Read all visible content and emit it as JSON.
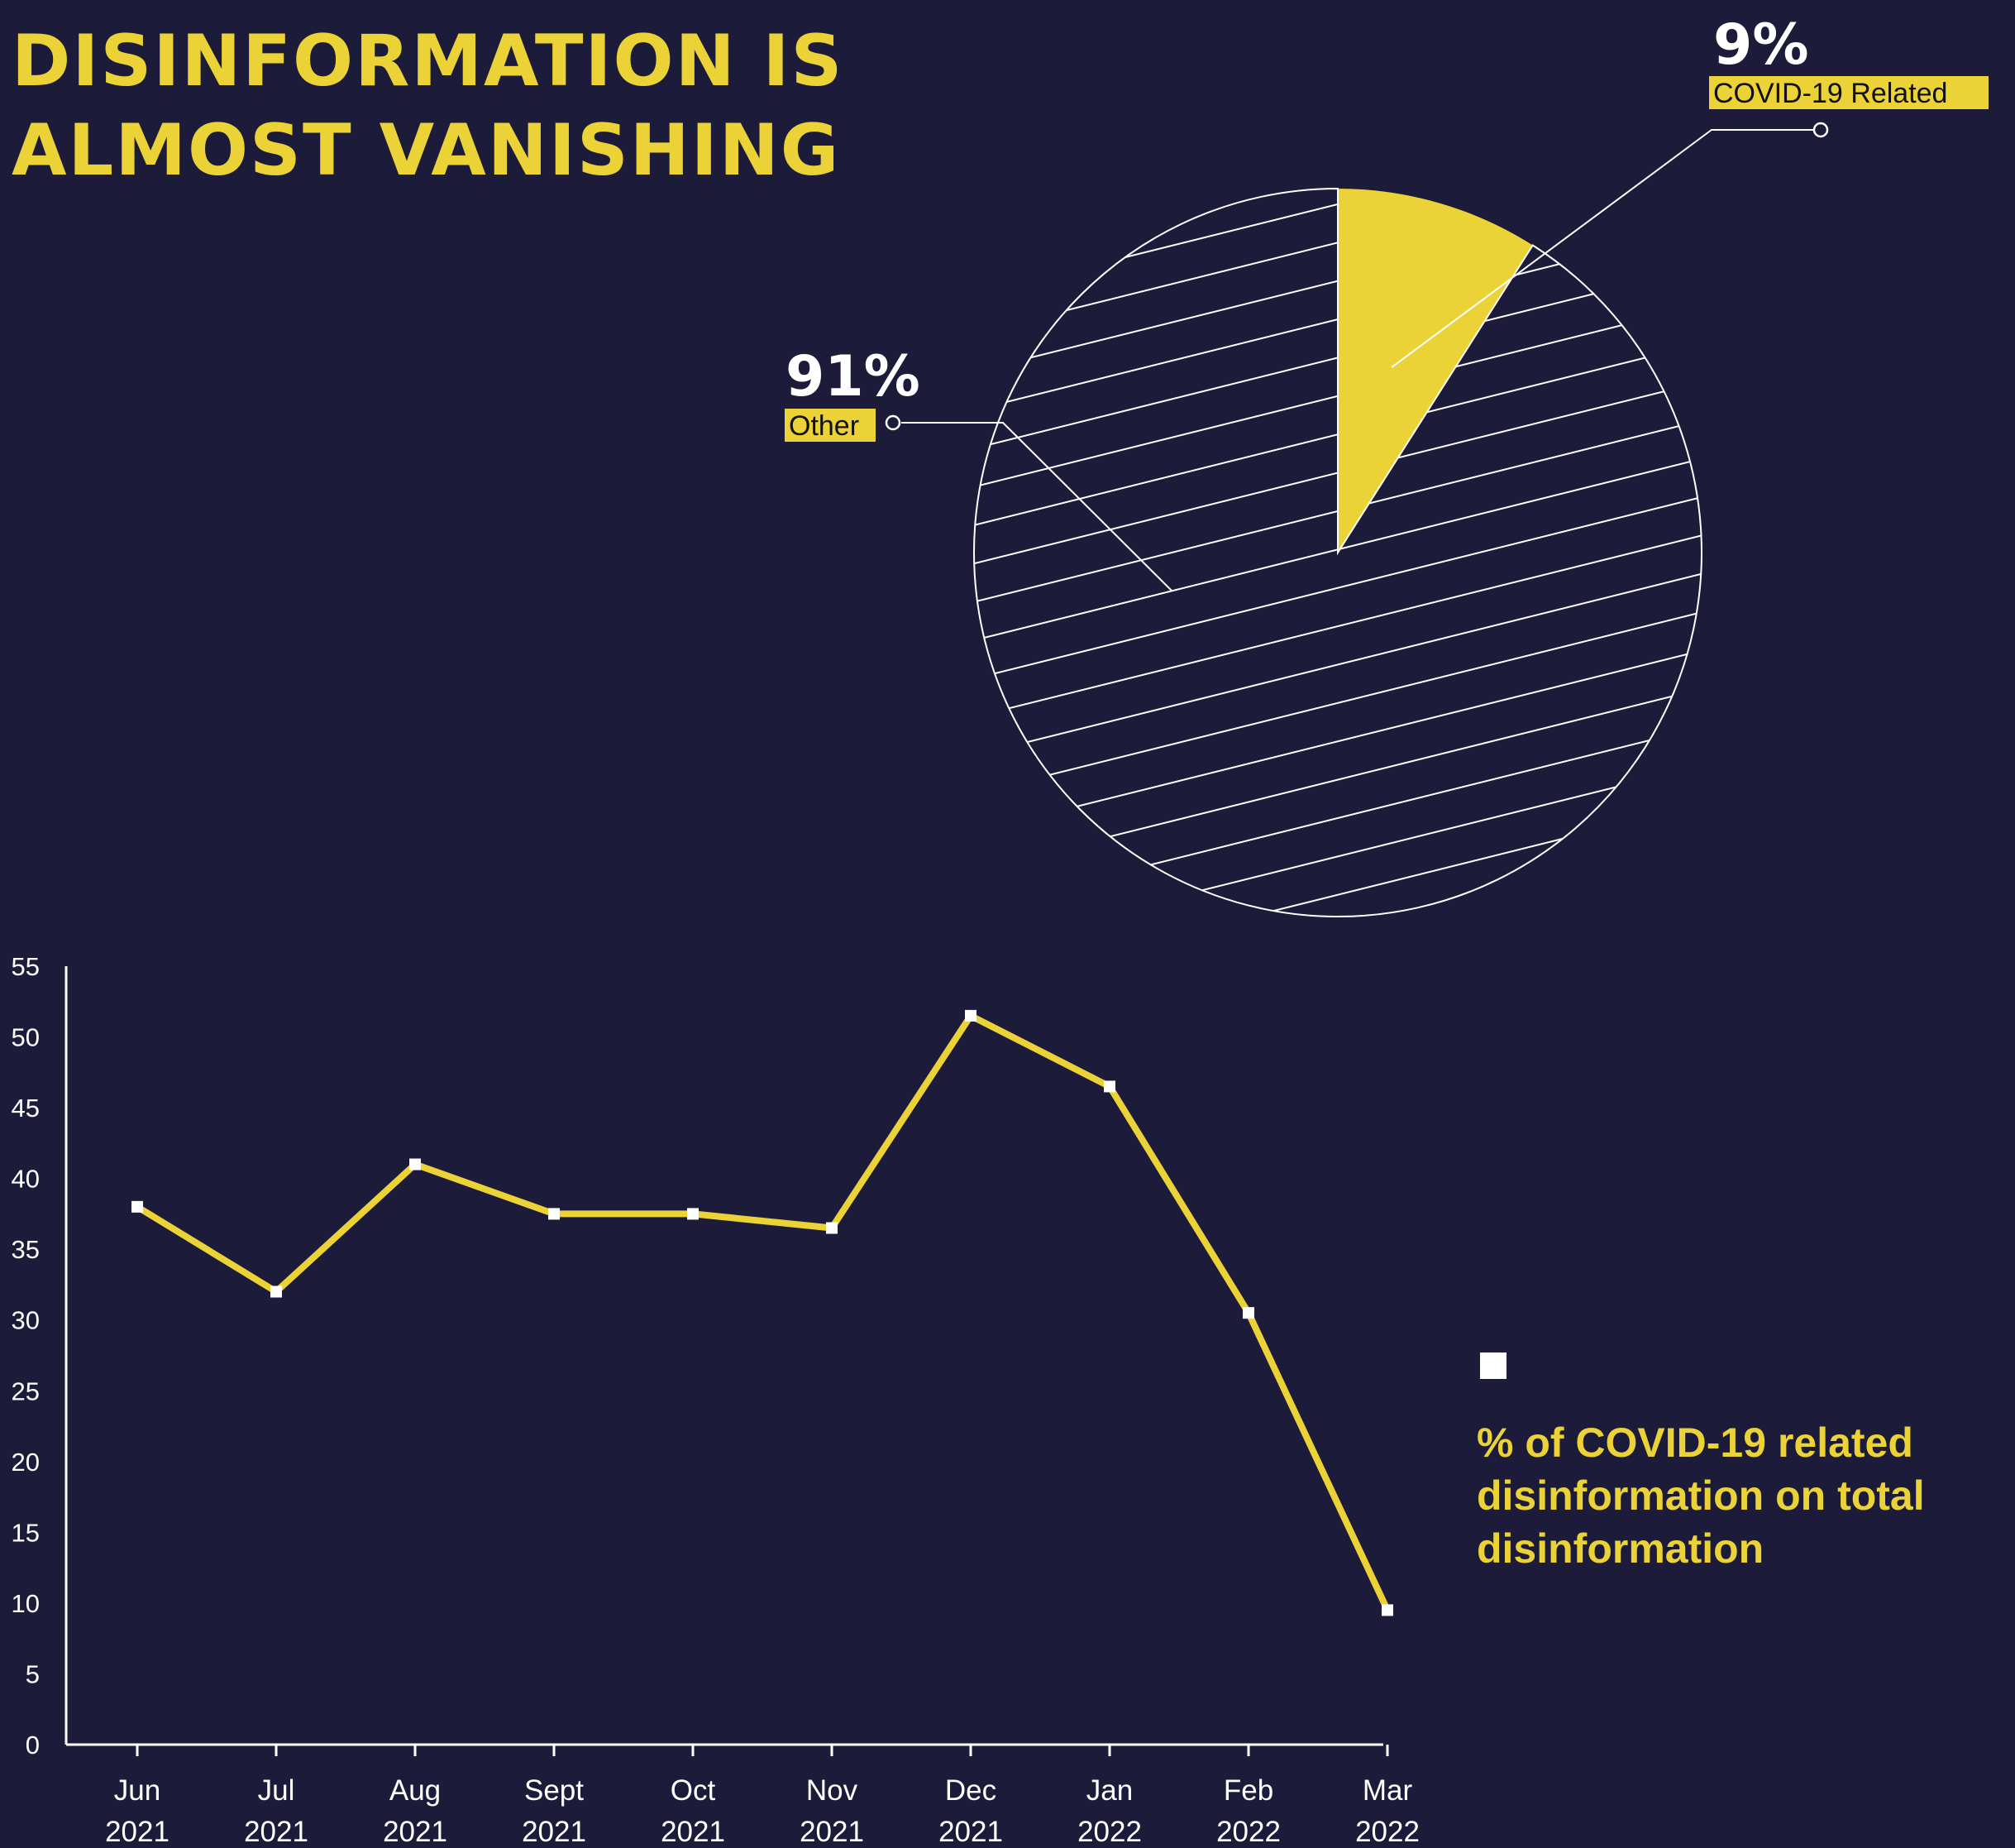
{
  "title": {
    "line1": "Disinformation is",
    "line2": "almost vanishing"
  },
  "colors": {
    "background": "#1c1c3a",
    "accent": "#ebd236",
    "marker": "#ffffff"
  },
  "pie": {
    "slices": [
      {
        "label": "COVID-19 Related",
        "pct_label": "9%",
        "value": 9,
        "style": "solid-yellow"
      },
      {
        "label": "Other",
        "pct_label": "91%",
        "value": 91,
        "style": "white-hatched"
      }
    ]
  },
  "legend": {
    "label": "% of COVID-19 related disinformation on total disinformation"
  },
  "chart_data": [
    {
      "type": "pie",
      "categories": [
        "COVID-19 Related",
        "Other"
      ],
      "values": [
        9,
        91
      ]
    },
    {
      "type": "line",
      "categories": [
        [
          "Jun",
          "2021"
        ],
        [
          "Jul",
          "2021"
        ],
        [
          "Aug",
          "2021"
        ],
        [
          "Sept",
          "2021"
        ],
        [
          "Oct",
          "2021"
        ],
        [
          "Nov",
          "2021"
        ],
        [
          "Dec",
          "2021"
        ],
        [
          "Jan",
          "2022"
        ],
        [
          "Feb",
          "2022"
        ],
        [
          "Mar",
          "2022"
        ]
      ],
      "series": [
        {
          "name": "% of COVID-19 related disinformation on total disinformation",
          "values": [
            38,
            32,
            41,
            37.5,
            37.5,
            36.5,
            51.5,
            46.5,
            30.5,
            9.5
          ]
        }
      ],
      "ylim": [
        0,
        55
      ],
      "yticks": [
        0,
        5,
        10,
        15,
        20,
        25,
        30,
        35,
        40,
        45,
        50,
        55
      ],
      "grid": false,
      "legend_position": "right"
    }
  ]
}
